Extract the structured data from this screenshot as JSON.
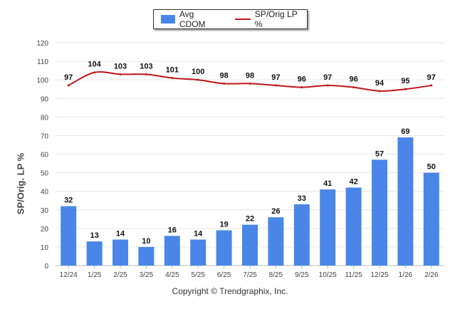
{
  "legend": {
    "bar_label": "Avg CDOM",
    "line_label": "SP/Orig LP %"
  },
  "copyright": "Copyright © Trendgraphix, Inc.",
  "colors": {
    "bar": "#4a86e8",
    "line": "#c0161c",
    "grid": "#e6e6e6"
  },
  "chart_data": {
    "type": "bar",
    "title": "",
    "xlabel": "",
    "ylabel": "SP/Orig. LP %",
    "ylim": [
      0,
      120
    ],
    "yticks": [
      0,
      10,
      20,
      30,
      40,
      50,
      60,
      70,
      80,
      90,
      100,
      110,
      120
    ],
    "categories": [
      "12/24",
      "1/25",
      "2/25",
      "3/25",
      "4/25",
      "5/25",
      "6/25",
      "7/25",
      "8/25",
      "9/25",
      "10/25",
      "11/25",
      "12/25",
      "1/26",
      "2/26"
    ],
    "series": [
      {
        "name": "Avg CDOM",
        "type": "bar",
        "values": [
          32,
          13,
          14,
          10,
          16,
          14,
          19,
          22,
          26,
          33,
          41,
          42,
          57,
          69,
          50
        ]
      },
      {
        "name": "SP/Orig LP %",
        "type": "line",
        "values": [
          97,
          104,
          103,
          103,
          101,
          100,
          98,
          98,
          97,
          96,
          97,
          96,
          94,
          95,
          97
        ]
      }
    ]
  }
}
